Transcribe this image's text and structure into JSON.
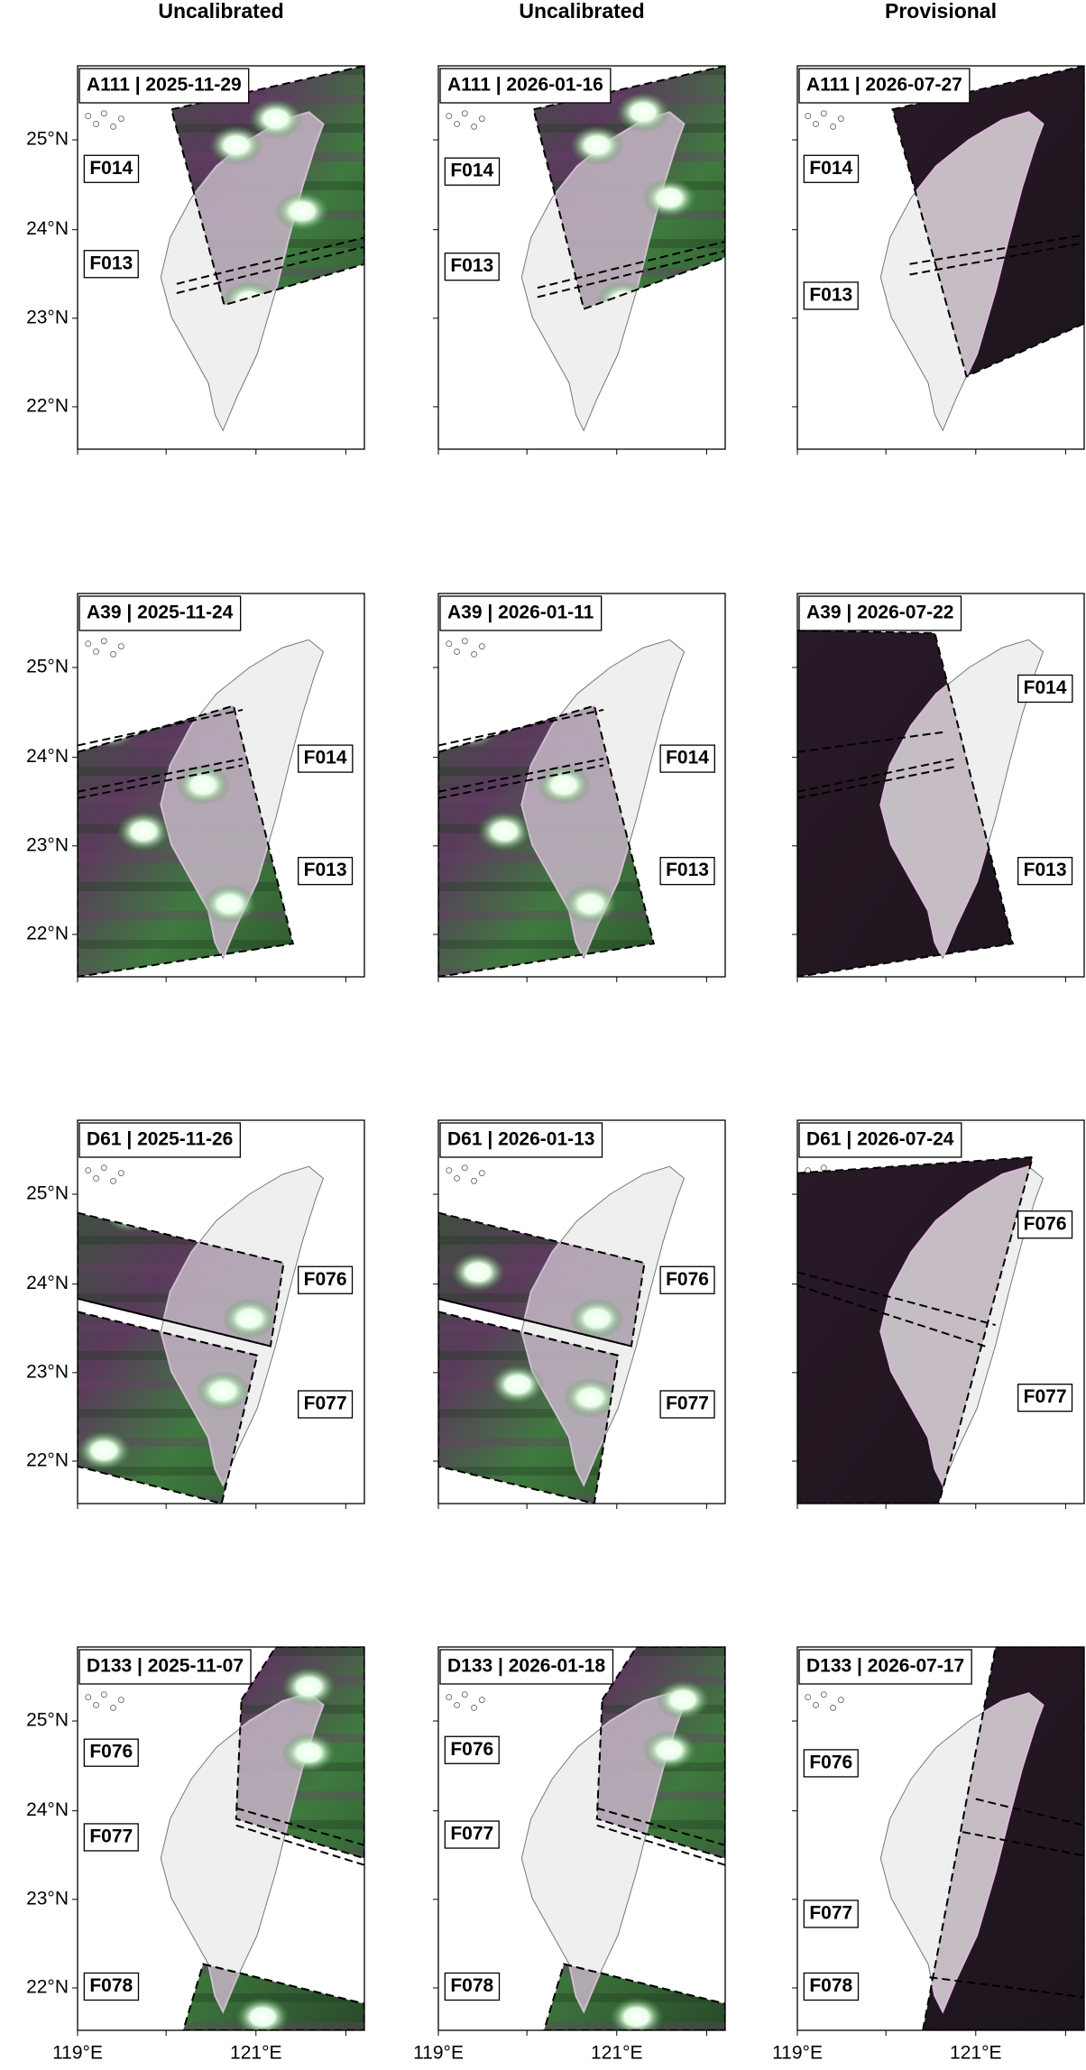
{
  "headers": [
    "Uncalibrated",
    "Uncalibrated",
    "Provisional"
  ],
  "panels": [
    [
      {
        "title": "A111 | 2025-11-29",
        "frames": [
          "F014",
          "F013"
        ]
      },
      {
        "title": "A111 | 2026-01-16",
        "frames": [
          "F014",
          "F013"
        ]
      },
      {
        "title": "A111 | 2026-07-27",
        "frames": [
          "F014",
          "F013"
        ]
      }
    ],
    [
      {
        "title": "A39 | 2025-11-24",
        "frames": [
          "F014",
          "F013"
        ]
      },
      {
        "title": "A39 | 2026-01-11",
        "frames": [
          "F014",
          "F013"
        ]
      },
      {
        "title": "A39 | 2026-07-22",
        "frames": [
          "F014",
          "F013"
        ]
      }
    ],
    [
      {
        "title": "D61 | 2025-11-26",
        "frames": [
          "F076",
          "F077"
        ]
      },
      {
        "title": "D61 | 2026-01-13",
        "frames": [
          "F076",
          "F077"
        ]
      },
      {
        "title": "D61 | 2026-07-24",
        "frames": [
          "F076",
          "F077"
        ]
      }
    ],
    [
      {
        "title": "D133 | 2025-11-07",
        "frames": [
          "F076",
          "F077",
          "F078"
        ]
      },
      {
        "title": "D133 | 2026-01-18",
        "frames": [
          "F076",
          "F077",
          "F078"
        ]
      },
      {
        "title": "D133 | 2026-07-17",
        "frames": [
          "F076",
          "F077",
          "F078"
        ]
      }
    ]
  ],
  "yticks": [
    "25°N",
    "24°N",
    "23°N",
    "22°N"
  ],
  "xticks": [
    "119°E",
    "121°E"
  ]
}
